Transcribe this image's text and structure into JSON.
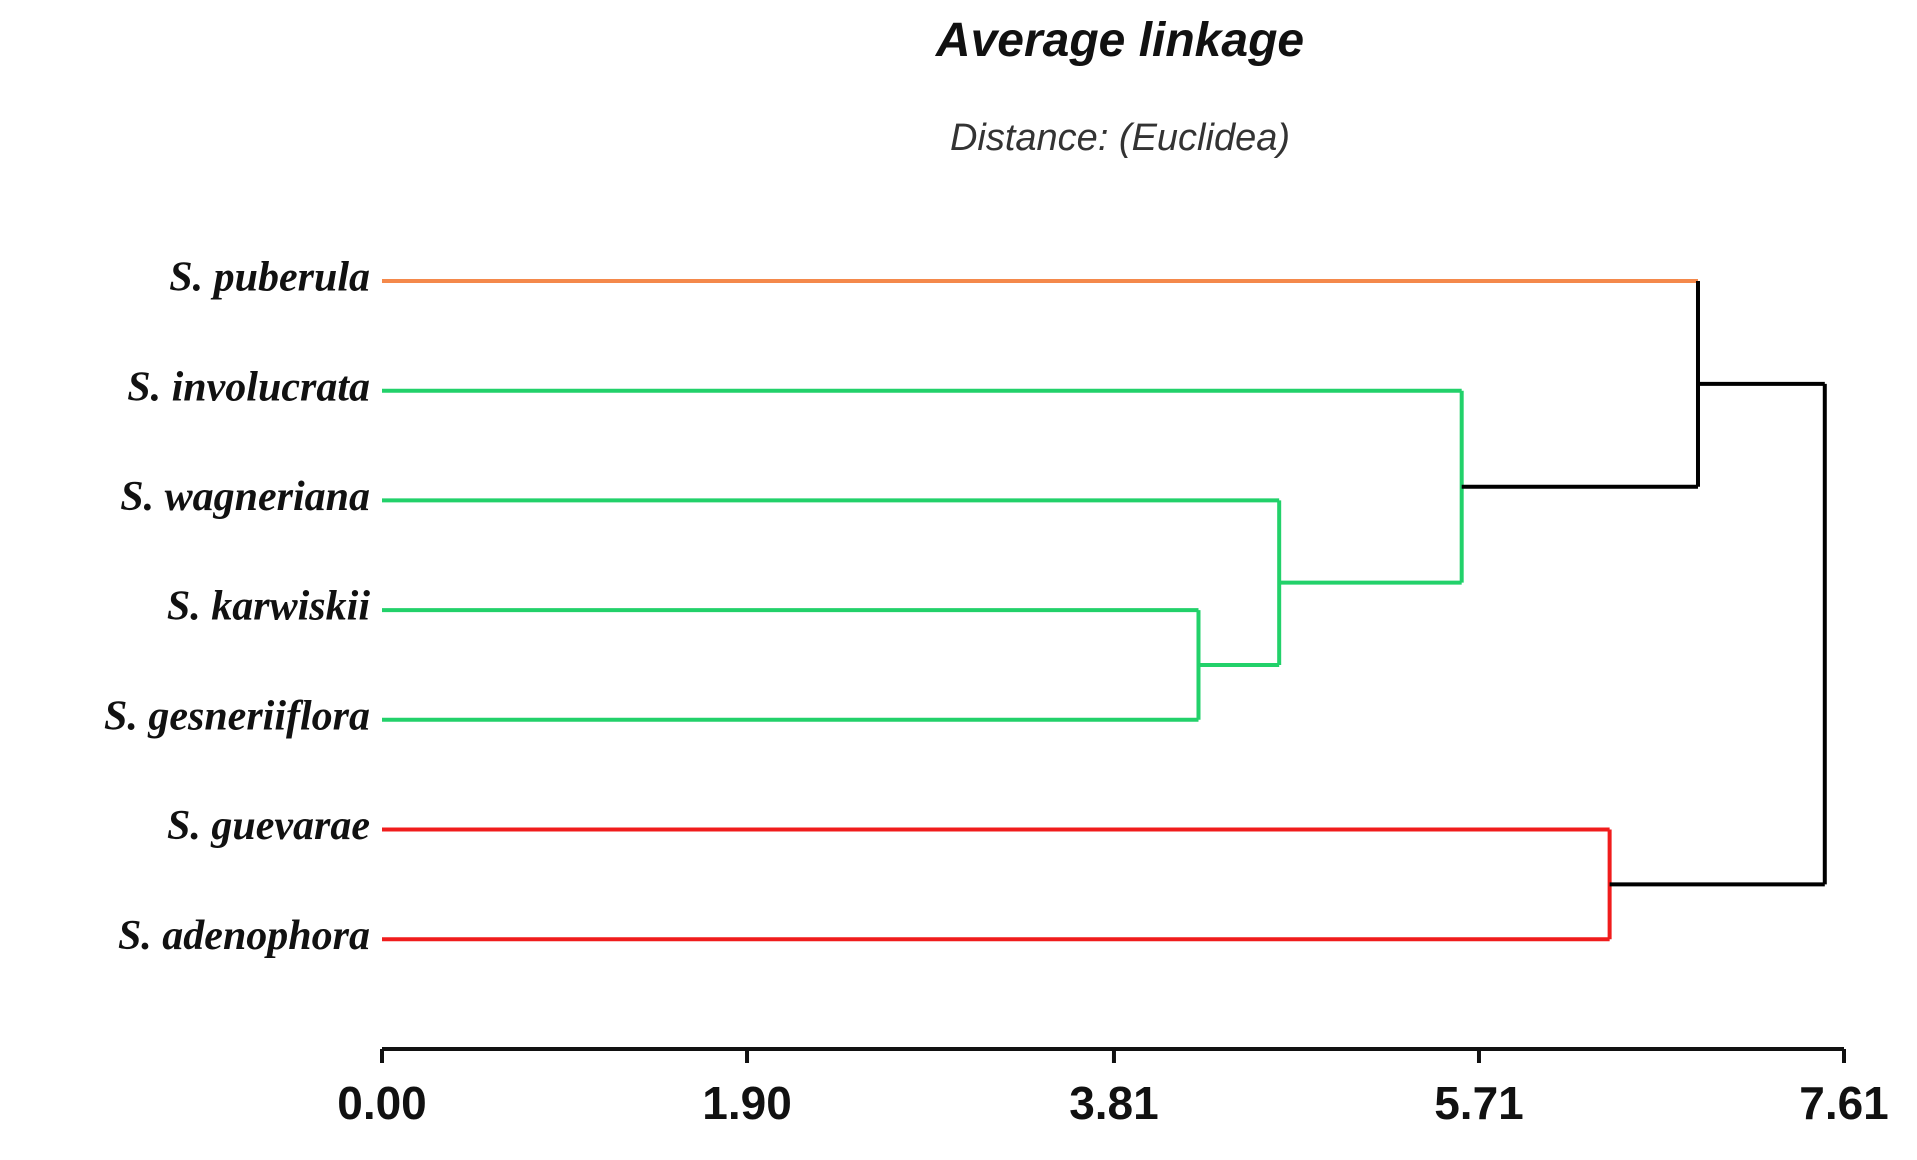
{
  "chart_data": {
    "type": "dendrogram",
    "title": "Average linkage",
    "subtitle": "Distance: (Euclidea)",
    "leaves": [
      {
        "name": "S. puberula",
        "color": "#f4894b"
      },
      {
        "name": "S. involucrata",
        "color": "#22d16a"
      },
      {
        "name": "S. wagneriana",
        "color": "#22d16a"
      },
      {
        "name": "S. karwiskii",
        "color": "#22d16a"
      },
      {
        "name": "S. gesneriiflora",
        "color": "#22d16a"
      },
      {
        "name": "S. guevarae",
        "color": "#f01c1c"
      },
      {
        "name": "S. adenophora",
        "color": "#f01c1c"
      }
    ],
    "merges": [
      {
        "children": [
          3,
          4
        ],
        "height": 4.25,
        "color": "#22d16a"
      },
      {
        "children": [
          2,
          7
        ],
        "height": 4.67,
        "color": "#22d16a"
      },
      {
        "children": [
          1,
          8
        ],
        "height": 5.62,
        "color": "#22d16a"
      },
      {
        "children": [
          5,
          6
        ],
        "height": 6.39,
        "color": "#f01c1c"
      },
      {
        "children": [
          0,
          9
        ],
        "height": 6.85,
        "color": "#000000"
      },
      {
        "children": [
          11,
          10
        ],
        "height": 7.51,
        "color": "#000000"
      }
    ],
    "xlim": [
      0,
      7.61
    ],
    "xticks": [
      {
        "value": 0,
        "label": "0.00"
      },
      {
        "value": 1.9,
        "label": "1.90"
      },
      {
        "value": 3.81,
        "label": "3.81"
      },
      {
        "value": 5.71,
        "label": "5.71"
      },
      {
        "value": 7.61,
        "label": "7.61"
      }
    ]
  }
}
